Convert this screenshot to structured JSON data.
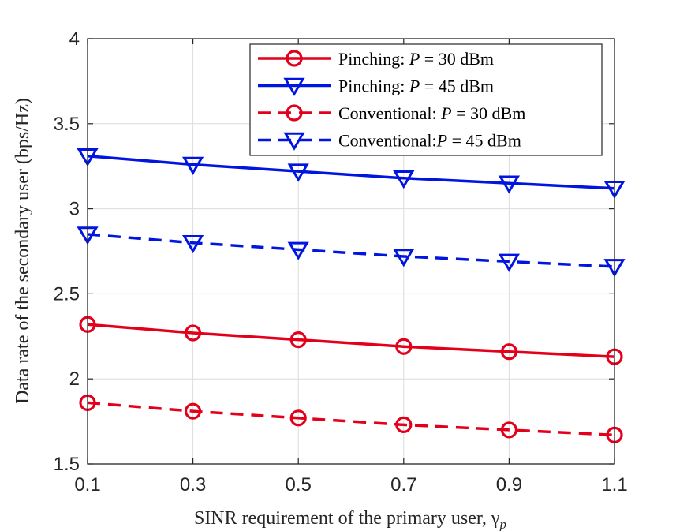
{
  "chart_data": {
    "type": "line",
    "title": "",
    "xlabel": "SINR requirement of the primary user, γ",
    "xlabel_sub": "p",
    "ylabel": "Data rate of the secondary user (bps/Hz)",
    "x": [
      0.1,
      0.3,
      0.5,
      0.7,
      0.9,
      1.1
    ],
    "xticks": [
      "0.1",
      "0.3",
      "0.5",
      "0.7",
      "0.9",
      "1.1"
    ],
    "yticks": [
      "1.5",
      "2",
      "2.5",
      "3",
      "3.5",
      "4"
    ],
    "ytick_values": [
      1.5,
      2,
      2.5,
      3,
      3.5,
      4
    ],
    "xlim": [
      0.1,
      1.1
    ],
    "ylim": [
      1.5,
      4
    ],
    "grid": true,
    "legend_position": "top-right",
    "series": [
      {
        "name": "Pinching: P = 30 dBm",
        "legend_prefix": "Pinching:  ",
        "legend_suffix": " = 30 dBm",
        "color": "#e3001b",
        "dash": "solid",
        "marker": "circle",
        "values": [
          2.32,
          2.27,
          2.23,
          2.19,
          2.16,
          2.13
        ]
      },
      {
        "name": "Pinching: P = 45 dBm",
        "legend_prefix": "Pinching:  ",
        "legend_suffix": " = 45 dBm",
        "color": "#0015e0",
        "dash": "solid",
        "marker": "triangle-down",
        "values": [
          3.31,
          3.26,
          3.22,
          3.18,
          3.15,
          3.12
        ]
      },
      {
        "name": "Conventional: P = 30 dBm",
        "legend_prefix": "Conventional:  ",
        "legend_suffix": " = 30 dBm",
        "color": "#e3001b",
        "dash": "dashed",
        "marker": "circle",
        "values": [
          1.86,
          1.81,
          1.77,
          1.73,
          1.7,
          1.67
        ]
      },
      {
        "name": "Conventional: P = 45 dBm",
        "legend_prefix": "Conventional:",
        "legend_suffix": " = 45 dBm",
        "color": "#0015e0",
        "dash": "dashed",
        "marker": "triangle-down",
        "values": [
          2.85,
          2.8,
          2.76,
          2.72,
          2.69,
          2.66
        ]
      }
    ],
    "legend_var": "P"
  }
}
